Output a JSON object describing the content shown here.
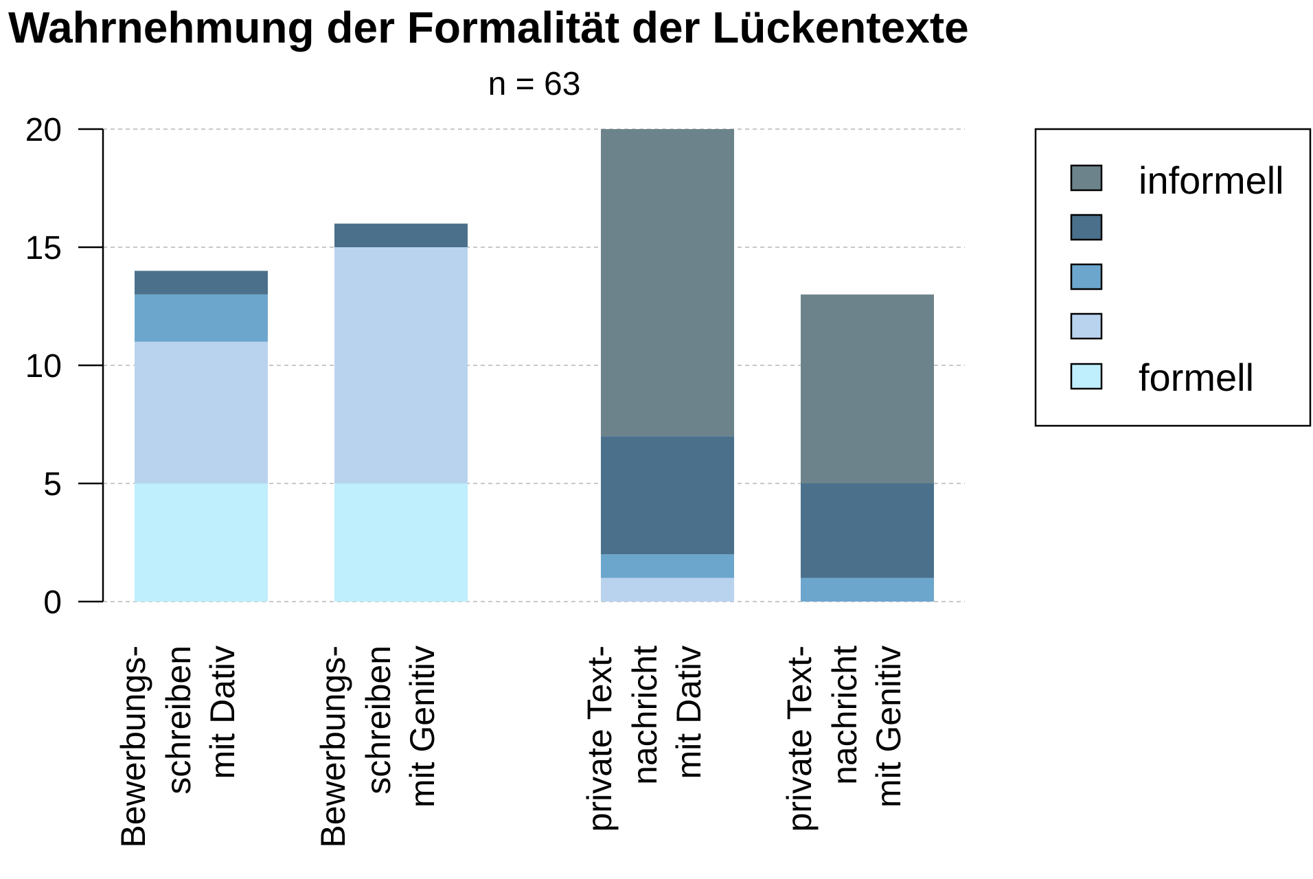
{
  "chart_data": {
    "type": "bar",
    "stacked": true,
    "title": "Wahrnehmung der Formalität der Lückentexte",
    "subtitle": "n = 63",
    "categories": [
      [
        "Bewerbungs-",
        "schreiben",
        "mit Dativ"
      ],
      [
        "Bewerbungs-",
        "schreiben",
        "mit Genitiv"
      ],
      [
        "private Text-",
        "nachricht",
        "mit Dativ"
      ],
      [
        "private Text-",
        "nachricht",
        "mit Genitiv"
      ]
    ],
    "series": [
      {
        "color": "#bfeefc",
        "values": [
          5,
          5,
          0,
          0
        ]
      },
      {
        "color": "#b9d3ee",
        "values": [
          6,
          10,
          1,
          0
        ]
      },
      {
        "color": "#6ca6cd",
        "values": [
          2,
          0,
          1,
          1
        ]
      },
      {
        "color": "#4a708b",
        "values": [
          1,
          1,
          5,
          4
        ]
      },
      {
        "color": "#6c838b",
        "values": [
          0,
          0,
          13,
          8
        ]
      }
    ],
    "legend": {
      "position": "top-right",
      "top_label": "informell",
      "bottom_label": "formell"
    },
    "yticks": [
      "0",
      "5",
      "10",
      "15",
      "20"
    ],
    "ylim": [
      0,
      20
    ],
    "grid": true
  }
}
